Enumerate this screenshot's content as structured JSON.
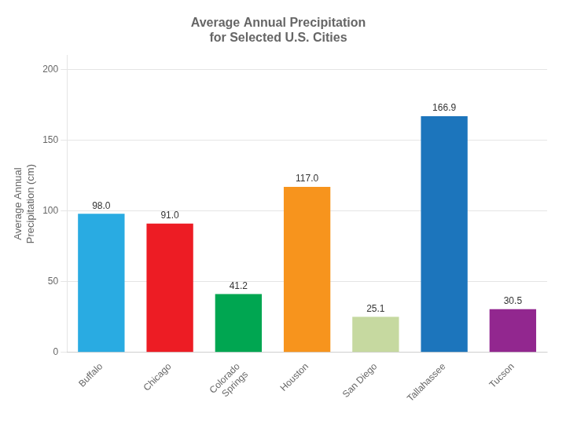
{
  "chart_data": {
    "type": "bar",
    "title": "Average Annual Precipitation\nfor Selected U.S. Cities",
    "y_label": "Average Annual\nPrecipitation (cm)",
    "categories": [
      "Buffalo",
      "Chicago",
      "Colorado\nSprings",
      "Houston",
      "San Diego",
      "Tallahassee",
      "Tucson"
    ],
    "values": [
      98.0,
      91.0,
      41.2,
      117.0,
      25.1,
      166.9,
      30.5
    ],
    "value_labels": [
      "98.0",
      "91.0",
      "41.2",
      "117.0",
      "25.1",
      "166.9",
      "30.5"
    ],
    "colors": [
      "#29ABE2",
      "#ED1C24",
      "#00A651",
      "#F7941D",
      "#C6D9A0",
      "#1C75BC",
      "#92278F"
    ],
    "ylim": [
      0,
      210
    ],
    "yticks": [
      0,
      50,
      100,
      150,
      200
    ],
    "grid": true,
    "data_labels": true
  }
}
